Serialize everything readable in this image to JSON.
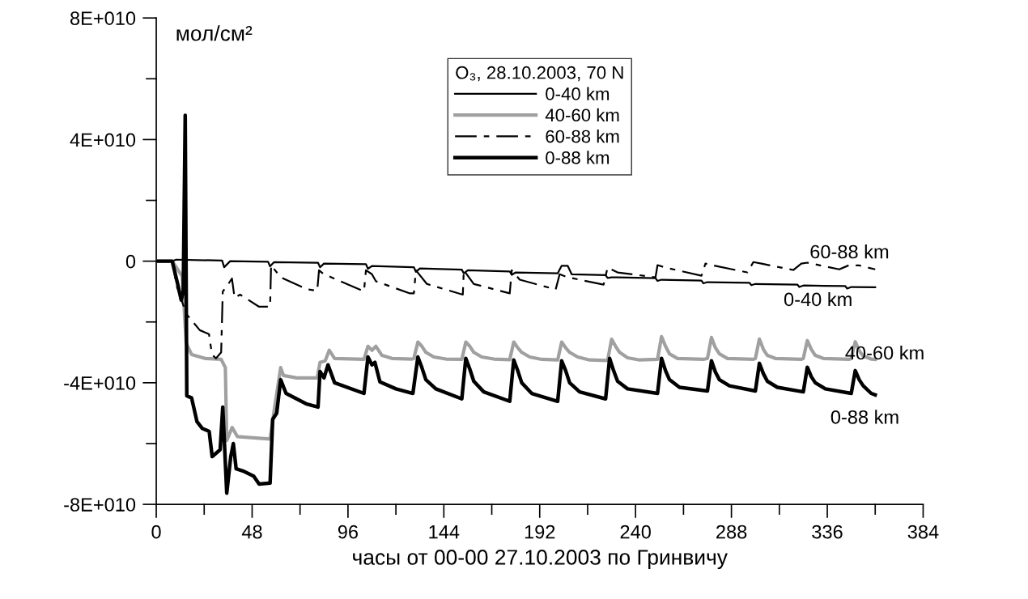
{
  "chart_data": {
    "type": "line",
    "xlabel": "часы от 00-00 27.10.2003 по Гринвичу",
    "ylabel": "мол/см²",
    "legend_title": "O₃, 28.10.2003, 70 N",
    "legend": "top",
    "grid": false,
    "marker": "none",
    "xlim": [
      0,
      384
    ],
    "ylim": [
      -80000000000.0,
      80000000000.0
    ],
    "xticks": [
      0,
      {
        "value": 24,
        "label": null
      },
      48,
      {
        "value": 72,
        "label": null
      },
      96,
      {
        "value": 120,
        "label": null
      },
      144,
      {
        "value": 168,
        "label": null
      },
      192,
      {
        "value": 216,
        "label": null
      },
      240,
      {
        "value": 264,
        "label": null
      },
      288,
      {
        "value": 312,
        "label": null
      },
      336,
      {
        "value": 360,
        "label": null
      },
      384
    ],
    "yticks": [
      {
        "value": -80000000000.0,
        "label": "-8E+010"
      },
      {
        "value": -60000000000.0,
        "label": null
      },
      {
        "value": -40000000000.0,
        "label": "-4E+010"
      },
      {
        "value": -20000000000.0,
        "label": null
      },
      0,
      {
        "value": 20000000000.0,
        "label": null
      },
      {
        "value": 40000000000.0,
        "label": "4E+010"
      },
      {
        "value": 60000000000.0,
        "label": null
      },
      {
        "value": 80000000000.0,
        "label": "8E+010"
      }
    ],
    "series": [
      {
        "name": "0-40 km",
        "color": "#000000",
        "line_style": "solid",
        "x": [
          0,
          8,
          10,
          33,
          34,
          37,
          56,
          57,
          59,
          81,
          82,
          84,
          105,
          106,
          108,
          129,
          130,
          132,
          153,
          154,
          156,
          177,
          178,
          180,
          201,
          203,
          206,
          208,
          225,
          226,
          228,
          250,
          251,
          253,
          273,
          274,
          276,
          297,
          298,
          300,
          321,
          322,
          324,
          345,
          346,
          348,
          360
        ],
        "values": [
          0,
          0,
          500000000.0,
          200000000.0,
          -2000000000.0,
          0,
          -200000000.0,
          -1700000000.0,
          -300000000.0,
          -500000000.0,
          -2000000000.0,
          -800000000.0,
          -1000000000.0,
          -2500000000.0,
          -1600000000.0,
          -2000000000.0,
          -3500000000.0,
          -2400000000.0,
          -2800000000.0,
          -4000000000.0,
          -3000000000.0,
          -3400000000.0,
          -4500000000.0,
          -3700000000.0,
          -4000000000.0,
          -1500000000.0,
          -1500000000.0,
          -4300000000.0,
          -4600000000.0,
          -5500000000.0,
          -5300000000.0,
          -5600000000.0,
          -6500000000.0,
          -6100000000.0,
          -6400000000.0,
          -7300000000.0,
          -6900000000.0,
          -7100000000.0,
          -7900000000.0,
          -7500000000.0,
          -7700000000.0,
          -8500000000.0,
          -8000000000.0,
          -8200000000.0,
          -9000000000.0,
          -8500000000.0,
          -8600000000.0
        ]
      },
      {
        "name": "40-60 km",
        "color": "#a0a0a0",
        "line_style": "solid",
        "x": [
          0,
          8,
          13,
          15,
          17.7,
          24.4,
          32.5,
          34.6,
          35.3,
          38,
          40.6,
          57,
          59,
          62.3,
          63.7,
          70.4,
          80.6,
          82,
          84.6,
          86.6,
          89.3,
          104,
          106,
          108,
          110,
          113,
          118,
          128,
          129,
          131,
          133,
          135,
          139,
          145,
          153,
          155,
          157,
          159,
          163,
          169,
          177,
          179,
          181,
          183,
          187,
          193,
          201,
          203,
          205,
          207,
          211,
          217,
          226,
          228,
          230,
          232,
          236,
          242,
          251,
          253,
          255,
          257,
          261,
          274,
          276,
          278,
          280,
          282,
          286,
          299,
          300,
          302,
          304,
          306,
          310,
          323,
          324,
          326,
          328,
          330,
          334,
          347,
          348,
          350,
          352,
          354,
          358,
          360
        ],
        "values": [
          0,
          0,
          -5000000000.0,
          -27000000000.0,
          -30700000000.0,
          -32000000000.0,
          -32300000000.0,
          -35000000000.0,
          -59000000000.0,
          -54700000000.0,
          -57700000000.0,
          -58500000000.0,
          -49300000000.0,
          -35000000000.0,
          -37600000000.0,
          -38400000000.0,
          -38400000000.0,
          -33300000000.0,
          -32800000000.0,
          -29300000000.0,
          -32000000000.0,
          -32300000000.0,
          -28000000000.0,
          -29300000000.0,
          -28000000000.0,
          -31000000000.0,
          -32000000000.0,
          -32200000000.0,
          -32000000000.0,
          -26600000000.0,
          -28000000000.0,
          -30000000000.0,
          -31500000000.0,
          -32200000000.0,
          -32300000000.0,
          -26600000000.0,
          -28000000000.0,
          -30000000000.0,
          -31500000000.0,
          -32200000000.0,
          -32400000000.0,
          -26600000000.0,
          -28500000000.0,
          -30000000000.0,
          -31500000000.0,
          -32300000000.0,
          -32500000000.0,
          -26600000000.0,
          -28500000000.0,
          -30000000000.0,
          -31500000000.0,
          -32500000000.0,
          -32700000000.0,
          -25700000000.0,
          -28000000000.0,
          -30000000000.0,
          -31800000000.0,
          -32500000000.0,
          -32300000000.0,
          -24800000000.0,
          -28000000000.0,
          -30500000000.0,
          -32000000000.0,
          -32300000000.0,
          -32000000000.0,
          -25100000000.0,
          -28500000000.0,
          -30500000000.0,
          -32000000000.0,
          -32300000000.0,
          -32000000000.0,
          -25600000000.0,
          -29000000000.0,
          -31000000000.0,
          -32000000000.0,
          -32300000000.0,
          -32000000000.0,
          -26100000000.0,
          -29000000000.0,
          -31000000000.0,
          -32000000000.0,
          -32300000000.0,
          -32000000000.0,
          -26500000000.0,
          -29500000000.0,
          -31200000000.0,
          -32200000000.0,
          -32300000000.0
        ]
      },
      {
        "name": "60-88 km",
        "color": "#000000",
        "line_style": "dashed",
        "x": [
          0,
          8,
          10.3,
          15,
          21.8,
          26.4,
          27.9,
          29.9,
          32.5,
          33.3,
          35.3,
          37.9,
          39.2,
          42,
          51.5,
          57,
          57.5,
          59.5,
          62.3,
          75.8,
          80.6,
          81.5,
          83.9,
          86.6,
          104,
          105,
          108,
          110,
          127,
          129,
          130,
          135.5,
          153.5,
          154,
          159,
          177,
          178,
          182,
          200,
          202,
          206,
          224,
          226,
          231,
          250,
          251,
          255,
          273,
          275,
          278,
          296,
          299,
          303,
          319,
          323,
          326,
          342,
          347,
          352,
          360
        ],
        "values": [
          0,
          0,
          -8300000000.0,
          -17300000000.0,
          -22700000000.0,
          -24000000000.0,
          -30700000000.0,
          -32000000000.0,
          -30000000000.0,
          -10000000000.0,
          -8300000000.0,
          -5700000000.0,
          -12000000000.0,
          -11000000000.0,
          -15000000000.0,
          -15000000000.0,
          -1300000000.0,
          -3000000000.0,
          -5300000000.0,
          -9300000000.0,
          -9700000000.0,
          -3000000000.0,
          -4300000000.0,
          -5000000000.0,
          -9900000000.0,
          -3000000000.0,
          -4300000000.0,
          -6600000000.0,
          -10600000000.0,
          -10600000000.0,
          -3000000000.0,
          -7500000000.0,
          -11000000000.0,
          -3000000000.0,
          -7500000000.0,
          -10600000000.0,
          -3000000000.0,
          -6100000000.0,
          -9300000000.0,
          -4300000000.0,
          -5300000000.0,
          -7700000000.0,
          -2100000000.0,
          -3700000000.0,
          -5300000000.0,
          -1300000000.0,
          -2100000000.0,
          -4800000000.0,
          -800000000.0,
          -1300000000.0,
          -3700000000.0,
          -300000000.0,
          -800000000.0,
          -2900000000.0,
          -800000000.0,
          -500000000.0,
          -2700000000.0,
          -1300000000.0,
          -1400000000.0,
          -2700000000.0
        ]
      },
      {
        "name": "0-88 km",
        "color": "#000000",
        "line_style": "solid",
        "x": [
          0,
          8,
          11,
          12.5,
          13.5,
          14.5,
          15.3,
          17.7,
          20.4,
          23,
          26.5,
          28,
          32,
          33.3,
          35.3,
          37.3,
          38.6,
          40,
          43.4,
          48.8,
          51.5,
          57,
          58.3,
          60.3,
          62.3,
          65,
          75,
          81,
          82,
          84,
          86,
          89.3,
          104,
          106,
          108,
          109.5,
          112,
          120,
          128.5,
          131,
          133,
          135,
          140,
          153,
          155,
          157,
          159,
          164,
          177,
          179,
          181,
          183,
          188,
          201,
          203,
          205,
          207,
          212,
          225,
          227,
          229,
          231,
          236,
          251,
          253,
          255,
          257,
          262,
          276,
          278,
          280,
          282,
          287,
          300,
          302,
          304,
          306,
          311,
          324,
          326,
          328,
          330,
          335,
          348,
          350,
          352,
          354,
          358,
          360
        ],
        "values": [
          0,
          0,
          -8300000000.0,
          -12800000000.0,
          -10000000000.0,
          48000000000.0,
          -44300000000.0,
          -45000000000.0,
          -52800000000.0,
          -55000000000.0,
          -56000000000.0,
          -64300000000.0,
          -62000000000.0,
          -48000000000.0,
          -76300000000.0,
          -64300000000.0,
          -60000000000.0,
          -68300000000.0,
          -69000000000.0,
          -70700000000.0,
          -73300000000.0,
          -73000000000.0,
          -52000000000.0,
          -50000000000.0,
          -39000000000.0,
          -43500000000.0,
          -46900000000.0,
          -48000000000.0,
          -36300000000.0,
          -38400000000.0,
          -34100000000.0,
          -40000000000.0,
          -43500000000.0,
          -31500000000.0,
          -34100000000.0,
          -33300000000.0,
          -39700000000.0,
          -42000000000.0,
          -43500000000.0,
          -31500000000.0,
          -35000000000.0,
          -39000000000.0,
          -42000000000.0,
          -45300000000.0,
          -32000000000.0,
          -35500000000.0,
          -39500000000.0,
          -43000000000.0,
          -46100000000.0,
          -32500000000.0,
          -36000000000.0,
          -40000000000.0,
          -43500000000.0,
          -46100000000.0,
          -32800000000.0,
          -36000000000.0,
          -40000000000.0,
          -43000000000.0,
          -45300000000.0,
          -32000000000.0,
          -36000000000.0,
          -39500000000.0,
          -42000000000.0,
          -43500000000.0,
          -32000000000.0,
          -36000000000.0,
          -39000000000.0,
          -41500000000.0,
          -42700000000.0,
          -32800000000.0,
          -36500000000.0,
          -39000000000.0,
          -41000000000.0,
          -42700000000.0,
          -33600000000.0,
          -37000000000.0,
          -39500000000.0,
          -41500000000.0,
          -43000000000.0,
          -34900000000.0,
          -38000000000.0,
          -40000000000.0,
          -42000000000.0,
          -43500000000.0,
          -36000000000.0,
          -39000000000.0,
          -41000000000.0,
          -43500000000.0,
          -44000000000.0
        ]
      }
    ],
    "annotations": [
      "60-88 km",
      "0-40 km",
      "40-60 km",
      "0-88 km"
    ]
  }
}
